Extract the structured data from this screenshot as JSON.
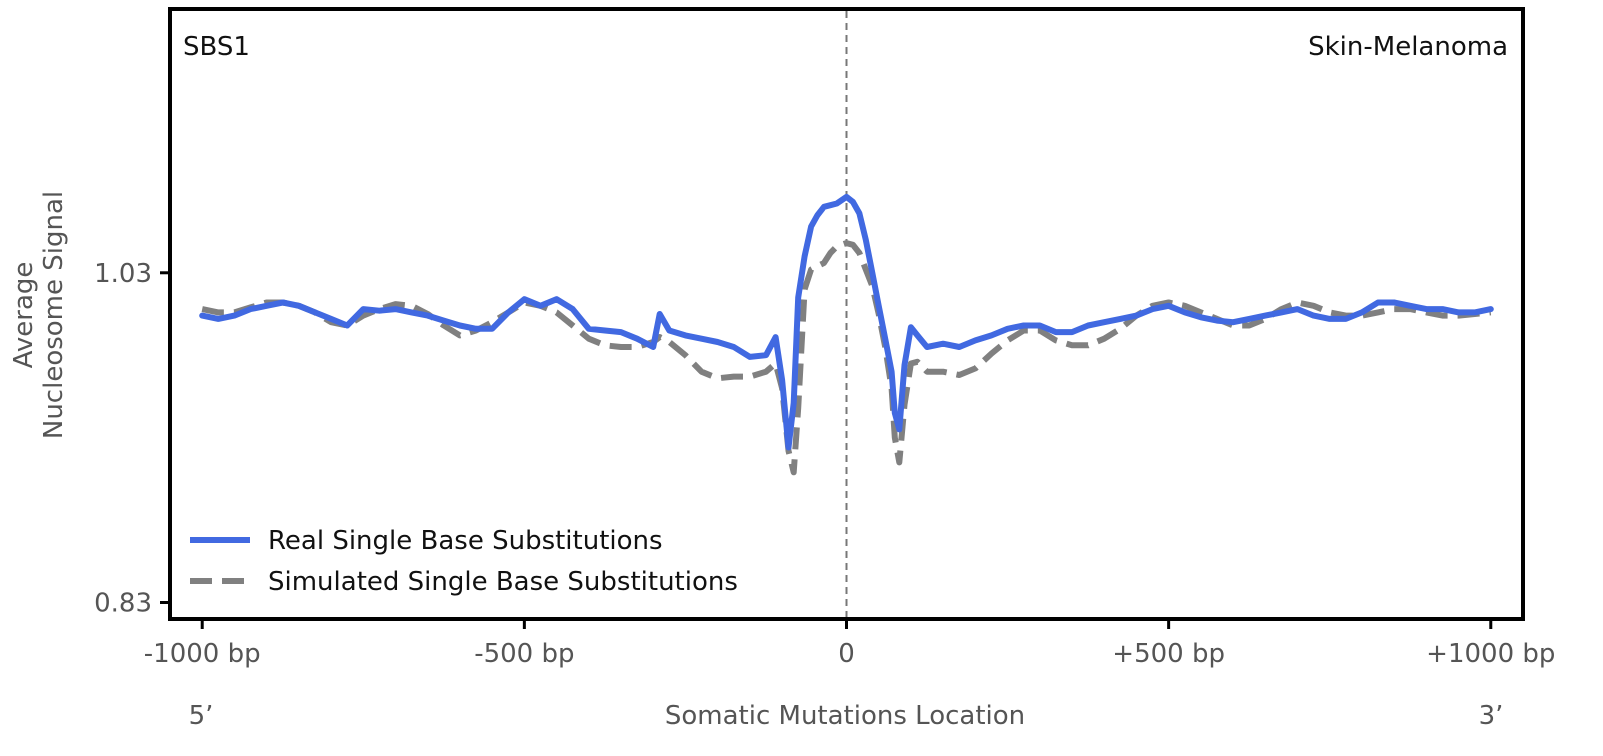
{
  "chart_data": {
    "type": "line",
    "signature": "SBS1",
    "tissue": "Skin-Melanoma",
    "xlabel": "Somatic Mutations Location",
    "ylabel": [
      "Average",
      "Nucleosome Signal"
    ],
    "x_ticks": [
      {
        "value": -1000,
        "label": "-1000 bp"
      },
      {
        "value": -500,
        "label": "-500 bp"
      },
      {
        "value": 0,
        "label": "0"
      },
      {
        "value": 500,
        "label": "+500 bp"
      },
      {
        "value": 1000,
        "label": "+1000 bp"
      }
    ],
    "y_ticks": [
      {
        "value": 0.83,
        "label": "0.83"
      },
      {
        "value": 1.03,
        "label": "1.03"
      }
    ],
    "end_labels": {
      "left": "5’",
      "right": "3’"
    },
    "xlim": [
      -1050,
      1050
    ],
    "ylim": [
      0.82,
      1.19
    ],
    "center_line_x": 0,
    "series": [
      {
        "name": "Real Single Base Substitutions",
        "color": "#4169E1",
        "style": "solid",
        "x": [
          -1000,
          -975,
          -950,
          -925,
          -900,
          -875,
          -850,
          -825,
          -800,
          -775,
          -750,
          -725,
          -700,
          -675,
          -650,
          -625,
          -600,
          -575,
          -550,
          -525,
          -500,
          -475,
          -450,
          -425,
          -400,
          -375,
          -350,
          -325,
          -300,
          -290,
          -275,
          -250,
          -225,
          -200,
          -175,
          -150,
          -125,
          -110,
          -100,
          -90,
          -82,
          -75,
          -65,
          -55,
          -45,
          -35,
          -25,
          -15,
          0,
          10,
          20,
          30,
          40,
          50,
          60,
          70,
          75,
          82,
          90,
          100,
          110,
          125,
          150,
          175,
          200,
          225,
          250,
          275,
          300,
          325,
          350,
          375,
          400,
          425,
          450,
          475,
          500,
          525,
          550,
          575,
          600,
          625,
          650,
          675,
          700,
          725,
          750,
          775,
          800,
          825,
          850,
          875,
          900,
          925,
          950,
          975,
          1000
        ],
        "y": [
          1.004,
          1.002,
          1.004,
          1.008,
          1.01,
          1.012,
          1.01,
          1.006,
          1.002,
          0.998,
          1.008,
          1.007,
          1.008,
          1.006,
          1.004,
          1.001,
          0.998,
          0.996,
          0.996,
          1.006,
          1.014,
          1.01,
          1.014,
          1.008,
          0.996,
          0.995,
          0.994,
          0.99,
          0.985,
          1.005,
          0.995,
          0.992,
          0.99,
          0.988,
          0.985,
          0.979,
          0.98,
          0.991,
          0.965,
          0.924,
          0.951,
          1.015,
          1.04,
          1.058,
          1.065,
          1.07,
          1.071,
          1.072,
          1.076,
          1.073,
          1.066,
          1.05,
          1.03,
          1.01,
          0.99,
          0.97,
          0.945,
          0.935,
          0.974,
          0.997,
          0.992,
          0.985,
          0.987,
          0.985,
          0.989,
          0.992,
          0.996,
          0.998,
          0.998,
          0.994,
          0.994,
          0.998,
          1.0,
          1.002,
          1.004,
          1.008,
          1.01,
          1.006,
          1.003,
          1.001,
          1.0,
          1.002,
          1.004,
          1.006,
          1.008,
          1.004,
          1.002,
          1.002,
          1.006,
          1.012,
          1.012,
          1.01,
          1.008,
          1.008,
          1.006,
          1.006,
          1.008
        ]
      },
      {
        "name": "Simulated Single Base Substitutions",
        "color": "#808080",
        "style": "dashed",
        "x": [
          -1000,
          -975,
          -950,
          -925,
          -900,
          -875,
          -850,
          -825,
          -800,
          -775,
          -750,
          -725,
          -700,
          -675,
          -650,
          -625,
          -600,
          -575,
          -550,
          -525,
          -500,
          -475,
          -450,
          -425,
          -400,
          -375,
          -350,
          -325,
          -300,
          -290,
          -275,
          -250,
          -225,
          -200,
          -175,
          -150,
          -125,
          -110,
          -100,
          -90,
          -82,
          -75,
          -65,
          -55,
          -45,
          -35,
          -25,
          -15,
          0,
          10,
          20,
          30,
          40,
          50,
          60,
          70,
          75,
          82,
          90,
          100,
          110,
          125,
          150,
          175,
          200,
          225,
          250,
          275,
          300,
          325,
          350,
          375,
          400,
          425,
          450,
          475,
          500,
          525,
          550,
          575,
          600,
          625,
          650,
          675,
          700,
          725,
          750,
          775,
          800,
          825,
          850,
          875,
          900,
          925,
          950,
          975,
          1000
        ],
        "y": [
          1.008,
          1.006,
          1.006,
          1.009,
          1.012,
          1.012,
          1.01,
          1.006,
          1.0,
          0.998,
          1.004,
          1.008,
          1.011,
          1.01,
          1.005,
          0.998,
          0.992,
          0.995,
          1.0,
          1.006,
          1.012,
          1.01,
          1.006,
          0.998,
          0.99,
          0.986,
          0.985,
          0.985,
          0.988,
          0.991,
          0.988,
          0.98,
          0.97,
          0.966,
          0.967,
          0.967,
          0.97,
          0.975,
          0.96,
          0.922,
          0.909,
          0.948,
          1.02,
          1.032,
          1.034,
          1.036,
          1.042,
          1.046,
          1.048,
          1.047,
          1.042,
          1.032,
          1.022,
          1.005,
          0.985,
          0.96,
          0.93,
          0.915,
          0.95,
          0.975,
          0.976,
          0.97,
          0.97,
          0.968,
          0.972,
          0.981,
          0.989,
          0.995,
          0.995,
          0.989,
          0.986,
          0.986,
          0.99,
          0.996,
          1.004,
          1.01,
          1.012,
          1.01,
          1.006,
          1.002,
          0.998,
          0.998,
          1.002,
          1.008,
          1.012,
          1.01,
          1.006,
          1.004,
          1.004,
          1.006,
          1.008,
          1.008,
          1.006,
          1.004,
          1.004,
          1.005,
          1.006
        ]
      }
    ]
  }
}
